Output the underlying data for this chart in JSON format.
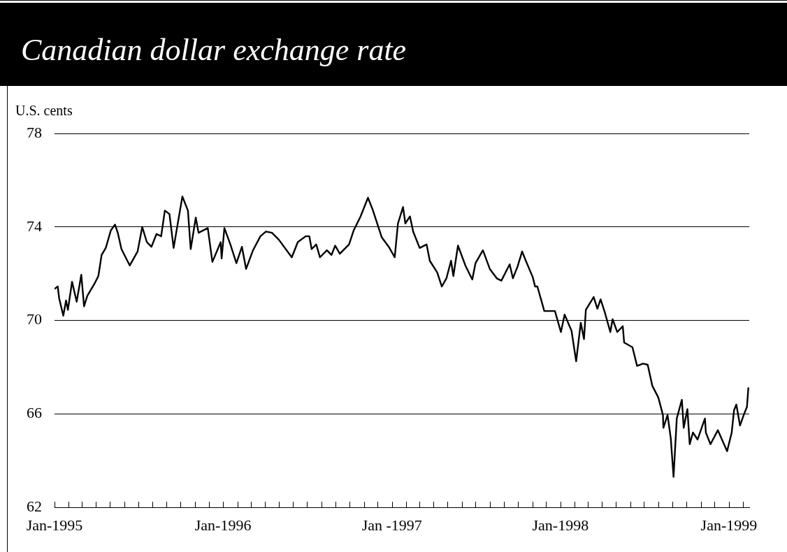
{
  "chart_data": {
    "type": "line",
    "title": "Canadian dollar exchange rate",
    "ylabel": "U.S. cents",
    "x": [
      "1995-01-01",
      "1995-01-08",
      "1995-01-11",
      "1995-01-20",
      "1995-01-26",
      "1995-01-30",
      "1995-02-08",
      "1995-02-18",
      "1995-02-28",
      "1995-03-06",
      "1995-03-13",
      "1995-03-28",
      "1995-04-06",
      "1995-04-13",
      "1995-04-22",
      "1995-05-03",
      "1995-05-12",
      "1995-05-18",
      "1995-05-26",
      "1995-06-13",
      "1995-06-30",
      "1995-07-10",
      "1995-07-20",
      "1995-07-30",
      "1995-08-10",
      "1995-08-20",
      "1995-08-28",
      "1995-09-07",
      "1995-09-16",
      "1995-09-25",
      "1995-10-05",
      "1995-10-17",
      "1995-10-23",
      "1995-11-03",
      "1995-11-09",
      "1995-11-29",
      "1995-12-09",
      "1995-12-27",
      "1995-12-29",
      "1996-01-04",
      "1996-01-17",
      "1996-01-30",
      "1996-02-11",
      "1996-02-20",
      "1996-03-06",
      "1996-03-22",
      "1996-04-03",
      "1996-04-16",
      "1996-05-01",
      "1996-05-29",
      "1996-06-11",
      "1996-06-28",
      "1996-07-06",
      "1996-07-11",
      "1996-07-21",
      "1996-07-29",
      "1996-08-13",
      "1996-08-23",
      "1996-08-31",
      "1996-09-10",
      "1996-09-30",
      "1996-10-10",
      "1996-10-25",
      "1996-11-10",
      "1996-11-20",
      "1996-12-10",
      "1996-12-25",
      "1997-01-07",
      "1997-01-14",
      "1997-01-25",
      "1997-01-30",
      "1997-02-09",
      "1997-02-16",
      "1997-03-02",
      "1997-03-17",
      "1997-03-24",
      "1997-04-09",
      "1997-04-19",
      "1997-04-29",
      "1997-05-09",
      "1997-05-14",
      "1997-05-24",
      "1997-06-09",
      "1997-06-24",
      "1997-07-01",
      "1997-07-17",
      "1997-08-01",
      "1997-08-16",
      "1997-08-26",
      "1997-09-13",
      "1997-09-20",
      "1997-09-30",
      "1997-10-10",
      "1997-10-18",
      "1997-11-02",
      "1997-11-07",
      "1997-11-12",
      "1997-11-27",
      "1997-12-20",
      "1998-01-02",
      "1998-01-10",
      "1998-01-25",
      "1998-02-04",
      "1998-02-14",
      "1998-02-21",
      "1998-02-25",
      "1998-03-14",
      "1998-03-22",
      "1998-03-29",
      "1998-04-07",
      "1998-04-19",
      "1998-04-24",
      "1998-05-04",
      "1998-05-16",
      "1998-05-19",
      "1998-06-06",
      "1998-06-16",
      "1998-06-29",
      "1998-07-09",
      "1998-07-19",
      "1998-08-01",
      "1998-08-11",
      "1998-08-12",
      "1998-08-21",
      "1998-08-28",
      "1998-09-03",
      "1998-09-10",
      "1998-09-21",
      "1998-09-25",
      "1998-10-03",
      "1998-10-08",
      "1998-10-15",
      "1998-10-25",
      "1998-11-10",
      "1998-11-12",
      "1998-11-22",
      "1998-12-08",
      "1998-12-28",
      "1999-01-07",
      "1999-01-12",
      "1999-01-17",
      "1999-01-25",
      "1999-02-02",
      "1999-02-09",
      "1999-02-12"
    ],
    "values": [
      71.35,
      71.45,
      70.95,
      70.2,
      70.85,
      70.45,
      71.65,
      70.8,
      71.95,
      70.6,
      71.05,
      71.55,
      71.9,
      72.8,
      73.1,
      73.85,
      74.1,
      73.75,
      73.05,
      72.35,
      72.95,
      74.0,
      73.35,
      73.15,
      73.7,
      73.6,
      74.7,
      74.55,
      73.1,
      74.15,
      75.3,
      74.7,
      73.05,
      74.4,
      73.75,
      73.95,
      72.5,
      73.35,
      72.65,
      73.95,
      73.25,
      72.45,
      73.15,
      72.2,
      73.0,
      73.6,
      73.8,
      73.75,
      73.45,
      72.7,
      73.35,
      73.6,
      73.6,
      73.05,
      73.25,
      72.7,
      73.0,
      72.8,
      73.2,
      72.85,
      73.25,
      73.85,
      74.45,
      75.25,
      74.75,
      73.55,
      73.15,
      72.7,
      74.15,
      74.85,
      74.15,
      74.45,
      73.8,
      73.1,
      73.25,
      72.55,
      72.05,
      71.45,
      71.8,
      72.55,
      71.9,
      73.2,
      72.35,
      71.75,
      72.45,
      73.0,
      72.2,
      71.8,
      71.7,
      72.4,
      71.8,
      72.3,
      72.95,
      72.55,
      71.85,
      71.45,
      71.45,
      70.4,
      70.4,
      69.5,
      70.25,
      69.55,
      68.25,
      69.9,
      69.2,
      70.45,
      71.0,
      70.5,
      70.9,
      70.35,
      69.5,
      70.05,
      69.5,
      69.75,
      69.05,
      68.85,
      68.05,
      68.15,
      68.1,
      67.2,
      66.7,
      65.95,
      65.4,
      65.95,
      64.95,
      63.3,
      65.8,
      66.6,
      65.4,
      66.2,
      64.7,
      65.2,
      64.9,
      65.8,
      65.2,
      64.7,
      65.3,
      64.4,
      65.2,
      66.15,
      66.4,
      65.5,
      65.95,
      66.3,
      67.1
    ],
    "color": "#000000",
    "xlim": [
      "1995-01-01",
      "1999-02-14"
    ],
    "xticks": [
      {
        "value": "1995-01",
        "label": "Jan-1995"
      },
      {
        "value": "1995-02",
        "label": null
      },
      {
        "value": "1995-03",
        "label": null
      },
      {
        "value": "1995-04",
        "label": null
      },
      {
        "value": "1995-05",
        "label": null
      },
      {
        "value": "1995-06",
        "label": null
      },
      {
        "value": "1995-07",
        "label": null
      },
      {
        "value": "1995-08",
        "label": null
      },
      {
        "value": "1995-09",
        "label": null
      },
      {
        "value": "1995-10",
        "label": null
      },
      {
        "value": "1995-11",
        "label": null
      },
      {
        "value": "1995-12",
        "label": null
      },
      {
        "value": "1996-01",
        "label": "Jan-1996"
      },
      {
        "value": "1996-02",
        "label": null
      },
      {
        "value": "1996-03",
        "label": null
      },
      {
        "value": "1996-04",
        "label": null
      },
      {
        "value": "1996-05",
        "label": null
      },
      {
        "value": "1996-06",
        "label": null
      },
      {
        "value": "1996-07",
        "label": null
      },
      {
        "value": "1996-08",
        "label": null
      },
      {
        "value": "1996-09",
        "label": null
      },
      {
        "value": "1996-10",
        "label": null
      },
      {
        "value": "1996-11",
        "label": null
      },
      {
        "value": "1996-12",
        "label": null
      },
      {
        "value": "1997-01",
        "label": "Jan -1997"
      },
      {
        "value": "1997-02",
        "label": null
      },
      {
        "value": "1997-03",
        "label": null
      },
      {
        "value": "1997-04",
        "label": null
      },
      {
        "value": "1997-05",
        "label": null
      },
      {
        "value": "1997-06",
        "label": null
      },
      {
        "value": "1997-07",
        "label": null
      },
      {
        "value": "1997-08",
        "label": null
      },
      {
        "value": "1997-09",
        "label": null
      },
      {
        "value": "1997-10",
        "label": null
      },
      {
        "value": "1997-11",
        "label": null
      },
      {
        "value": "1997-12",
        "label": null
      },
      {
        "value": "1998-01",
        "label": "Jan-1998"
      },
      {
        "value": "1998-02",
        "label": null
      },
      {
        "value": "1998-03",
        "label": null
      },
      {
        "value": "1998-04",
        "label": null
      },
      {
        "value": "1998-05",
        "label": null
      },
      {
        "value": "1998-06",
        "label": null
      },
      {
        "value": "1998-07",
        "label": null
      },
      {
        "value": "1998-08",
        "label": null
      },
      {
        "value": "1998-09",
        "label": null
      },
      {
        "value": "1998-10",
        "label": null
      },
      {
        "value": "1998-11",
        "label": null
      },
      {
        "value": "1998-12",
        "label": null
      },
      {
        "value": "1999-01",
        "label": "Jan-1999"
      },
      {
        "value": "1999-02",
        "label": null
      }
    ],
    "ylim": [
      62,
      78
    ],
    "yticks": [
      62,
      66,
      70,
      74,
      78
    ],
    "grid": "y",
    "legend": false,
    "marker": "none",
    "line_style": "solid"
  }
}
